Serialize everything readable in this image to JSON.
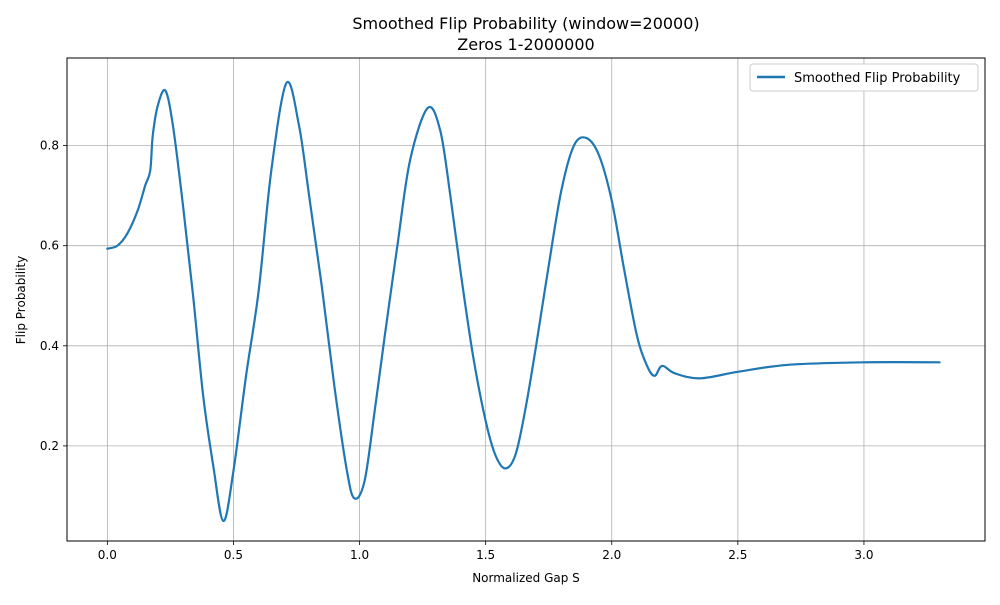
{
  "chart_data": {
    "type": "line",
    "title": "Smoothed Flip Probability (window=20000)",
    "subtitle": "Zeros 1-2000000",
    "xlabel": "Normalized Gap S",
    "ylabel": "Flip Probability",
    "xlim": [
      -0.16,
      3.48
    ],
    "ylim": [
      0.01,
      0.975
    ],
    "xticks": [
      0.0,
      0.5,
      1.0,
      1.5,
      2.0,
      2.5,
      3.0
    ],
    "xtick_labels": [
      "0.0",
      "0.5",
      "1.0",
      "1.5",
      "2.0",
      "2.5",
      "3.0"
    ],
    "yticks": [
      0.2,
      0.4,
      0.6,
      0.8
    ],
    "ytick_labels": [
      "0.2",
      "0.4",
      "0.6",
      "0.8"
    ],
    "grid": true,
    "legend": {
      "placement": "top-right",
      "entries": [
        "Smoothed Flip Probability"
      ]
    },
    "series": [
      {
        "name": "Smoothed Flip Probability",
        "color": "#1f77b4",
        "x": [
          0.0,
          0.04,
          0.08,
          0.12,
          0.15,
          0.17,
          0.18,
          0.2,
          0.23,
          0.26,
          0.3,
          0.34,
          0.38,
          0.42,
          0.46,
          0.5,
          0.55,
          0.6,
          0.65,
          0.71,
          0.76,
          0.8,
          0.85,
          0.9,
          0.95,
          0.98,
          1.02,
          1.06,
          1.1,
          1.15,
          1.2,
          1.27,
          1.32,
          1.36,
          1.4,
          1.45,
          1.5,
          1.54,
          1.58,
          1.62,
          1.66,
          1.7,
          1.75,
          1.8,
          1.85,
          1.9,
          1.95,
          2.0,
          2.05,
          2.1,
          2.14,
          2.17,
          2.2,
          2.25,
          2.35,
          2.5,
          2.7,
          3.0,
          3.3
        ],
        "values": [
          0.594,
          0.6,
          0.625,
          0.67,
          0.72,
          0.75,
          0.82,
          0.88,
          0.91,
          0.84,
          0.68,
          0.5,
          0.3,
          0.16,
          0.05,
          0.15,
          0.34,
          0.51,
          0.75,
          0.925,
          0.84,
          0.7,
          0.52,
          0.32,
          0.15,
          0.095,
          0.13,
          0.27,
          0.42,
          0.6,
          0.77,
          0.875,
          0.83,
          0.7,
          0.55,
          0.38,
          0.25,
          0.18,
          0.155,
          0.185,
          0.28,
          0.4,
          0.56,
          0.71,
          0.8,
          0.815,
          0.78,
          0.69,
          0.55,
          0.42,
          0.36,
          0.34,
          0.36,
          0.345,
          0.335,
          0.348,
          0.362,
          0.367,
          0.367
        ]
      }
    ]
  }
}
